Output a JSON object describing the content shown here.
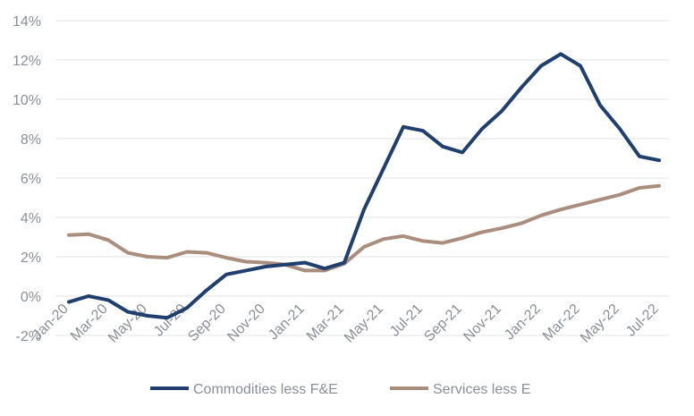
{
  "chart_data": {
    "type": "line",
    "title": "",
    "xlabel": "",
    "ylabel": "",
    "ylim": [
      -2,
      14
    ],
    "y_ticks": [
      -2,
      0,
      2,
      4,
      6,
      8,
      10,
      12,
      14
    ],
    "y_tick_labels": [
      "-2%",
      "0%",
      "2%",
      "4%",
      "6%",
      "8%",
      "10%",
      "12%",
      "14%"
    ],
    "grid": "horizontal",
    "legend_position": "bottom",
    "categories": [
      "Jan-20",
      "Feb-20",
      "Mar-20",
      "Apr-20",
      "May-20",
      "Jun-20",
      "Jul-20",
      "Aug-20",
      "Sep-20",
      "Oct-20",
      "Nov-20",
      "Dec-20",
      "Jan-21",
      "Feb-21",
      "Mar-21",
      "Apr-21",
      "May-21",
      "Jun-21",
      "Jul-21",
      "Aug-21",
      "Sep-21",
      "Oct-21",
      "Nov-21",
      "Dec-21",
      "Jan-22",
      "Feb-22",
      "Mar-22",
      "Apr-22",
      "May-22",
      "Jun-22",
      "Jul-22"
    ],
    "x_tick_labels": [
      "Jan-20",
      "Mar-20",
      "May-20",
      "Jul-20",
      "Sep-20",
      "Nov-20",
      "Jan-21",
      "Mar-21",
      "May-21",
      "Jul-21",
      "Sep-21",
      "Nov-21",
      "Jan-22",
      "Mar-22",
      "May-22",
      "Jul-22"
    ],
    "series": [
      {
        "name": "Commodities less F&E",
        "color": "#1f3f6e",
        "values": [
          -0.3,
          0.0,
          -0.2,
          -0.8,
          -1.0,
          -1.1,
          -0.6,
          0.3,
          1.1,
          1.3,
          1.5,
          1.6,
          1.7,
          1.4,
          1.7,
          4.4,
          6.5,
          8.6,
          8.4,
          7.6,
          7.3,
          8.5,
          9.4,
          10.6,
          11.7,
          12.3,
          11.7,
          9.7,
          8.5,
          7.1,
          6.9
        ]
      },
      {
        "name": "Services less E",
        "color": "#a98e7d",
        "values": [
          3.1,
          3.15,
          2.85,
          2.2,
          2.0,
          1.95,
          2.25,
          2.2,
          1.95,
          1.75,
          1.7,
          1.6,
          1.3,
          1.3,
          1.65,
          2.5,
          2.9,
          3.05,
          2.8,
          2.7,
          2.95,
          3.25,
          3.45,
          3.7,
          4.1,
          4.4,
          4.65,
          4.9,
          5.15,
          5.5,
          5.6
        ]
      }
    ]
  }
}
